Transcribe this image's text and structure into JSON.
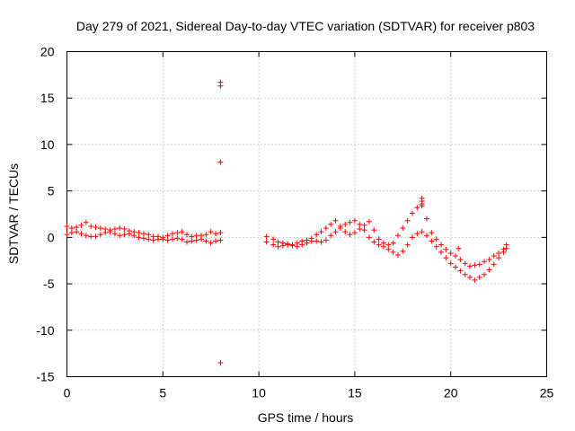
{
  "chart_data": {
    "type": "scatter",
    "title": "Day 279 of 2021, Sidereal Day-to-day VTEC variation (SDTVAR) for receiver p803",
    "xlabel": "GPS time / hours",
    "ylabel": "SDTVAR / TECUs",
    "xlim": [
      0,
      25
    ],
    "ylim": [
      -15,
      20
    ],
    "xticks": [
      0,
      5,
      10,
      15,
      20,
      25
    ],
    "yticks": [
      -15,
      -10,
      -5,
      0,
      5,
      10,
      15,
      20
    ],
    "grid": true,
    "marker": "+",
    "color": "#ff0000",
    "series": [
      {
        "name": "SDTVAR",
        "x": [
          0.0,
          0.25,
          0.5,
          0.75,
          1.0,
          1.25,
          1.5,
          1.75,
          2.0,
          2.25,
          2.5,
          2.75,
          3.0,
          3.25,
          3.5,
          3.75,
          4.0,
          4.25,
          4.5,
          4.75,
          5.0,
          5.25,
          5.5,
          5.75,
          6.0,
          6.25,
          6.5,
          6.75,
          7.0,
          7.25,
          7.5,
          7.75,
          8.0,
          0.0,
          0.25,
          0.5,
          0.75,
          1.0,
          1.25,
          1.5,
          1.75,
          2.0,
          2.25,
          2.5,
          2.75,
          3.0,
          3.25,
          3.5,
          3.75,
          4.0,
          4.25,
          4.5,
          4.75,
          5.0,
          5.25,
          5.5,
          5.75,
          6.0,
          6.25,
          6.5,
          6.75,
          7.0,
          7.25,
          7.5,
          7.75,
          8.0,
          8.0,
          8.0,
          8.0,
          8.0,
          10.4,
          10.75,
          11.0,
          11.25,
          11.5,
          11.75,
          12.0,
          12.25,
          12.5,
          12.75,
          13.0,
          13.25,
          13.5,
          13.75,
          14.0,
          14.25,
          14.5,
          14.75,
          15.0,
          15.25,
          15.5,
          15.75,
          16.0,
          16.25,
          16.5,
          16.75,
          17.0,
          17.25,
          17.5,
          17.75,
          18.0,
          18.25,
          18.5,
          18.75,
          19.0,
          19.25,
          19.5,
          19.75,
          20.0,
          20.25,
          20.5,
          20.75,
          21.0,
          21.25,
          21.5,
          21.75,
          22.0,
          22.25,
          22.5,
          22.75,
          22.9,
          10.4,
          10.75,
          11.0,
          11.25,
          11.5,
          11.75,
          12.0,
          12.25,
          12.5,
          12.75,
          13.0,
          13.25,
          13.5,
          13.75,
          14.0,
          14.25,
          14.5,
          14.75,
          15.0,
          15.25,
          15.5,
          15.75,
          16.0,
          16.25,
          16.5,
          16.75,
          17.0,
          17.25,
          17.5,
          17.75,
          18.0,
          18.25,
          18.5,
          18.75,
          19.0,
          19.25,
          19.5,
          19.75,
          20.0,
          20.25,
          20.5,
          20.75,
          21.0,
          21.25,
          21.5,
          21.75,
          22.0,
          22.25,
          22.5,
          22.75,
          22.9,
          18.5,
          18.5,
          18.5,
          20.4
        ],
        "y": [
          1.2,
          1.0,
          1.1,
          1.3,
          1.6,
          1.2,
          1.1,
          1.0,
          0.9,
          0.8,
          0.9,
          1.0,
          0.9,
          0.7,
          0.6,
          0.5,
          0.4,
          0.3,
          0.1,
          0.1,
          0.0,
          0.2,
          0.4,
          0.5,
          0.6,
          0.3,
          0.1,
          0.2,
          0.2,
          0.3,
          0.6,
          0.4,
          0.5,
          0.3,
          0.5,
          0.6,
          0.4,
          0.2,
          0.1,
          0.1,
          0.3,
          0.5,
          0.6,
          0.4,
          0.2,
          0.3,
          0.4,
          0.2,
          0.0,
          -0.1,
          -0.2,
          -0.3,
          -0.2,
          -0.2,
          -0.3,
          -0.2,
          -0.1,
          -0.2,
          -0.5,
          -0.4,
          -0.3,
          -0.2,
          -0.4,
          -0.6,
          -0.4,
          -0.3,
          16.7,
          16.3,
          8.1,
          -13.5,
          -0.5,
          -0.8,
          -1.0,
          -0.9,
          -0.8,
          -0.9,
          -1.0,
          -0.8,
          -0.6,
          -0.4,
          -0.4,
          -0.5,
          -0.3,
          0.2,
          0.6,
          1.0,
          1.4,
          1.6,
          1.8,
          1.4,
          0.8,
          0.0,
          -0.5,
          -0.8,
          -1.0,
          -1.3,
          -1.6,
          -1.9,
          -1.5,
          -0.8,
          0.0,
          0.4,
          0.6,
          0.2,
          -0.4,
          -1.0,
          -1.6,
          -2.2,
          -2.8,
          -3.2,
          -3.6,
          -4.0,
          -4.3,
          -4.6,
          -4.3,
          -4.0,
          -3.5,
          -2.9,
          -2.2,
          -1.6,
          -1.2,
          0.1,
          -0.2,
          -0.5,
          -0.6,
          -0.7,
          -0.8,
          -0.6,
          -0.4,
          -0.3,
          -0.1,
          0.3,
          0.6,
          1.0,
          1.4,
          1.8,
          1.2,
          0.6,
          0.3,
          0.5,
          0.9,
          1.3,
          1.7,
          0.8,
          -0.2,
          -0.6,
          -0.8,
          -0.6,
          0.2,
          1.0,
          1.8,
          2.6,
          3.2,
          3.4,
          2.0,
          0.5,
          -0.2,
          -0.8,
          -1.3,
          -1.7,
          -2.0,
          -2.4,
          -2.8,
          -3.1,
          -3.0,
          -2.9,
          -2.6,
          -2.4,
          -2.0,
          -1.7,
          -1.3,
          -0.8,
          4.2,
          3.9,
          3.6,
          -1.2
        ]
      }
    ]
  }
}
